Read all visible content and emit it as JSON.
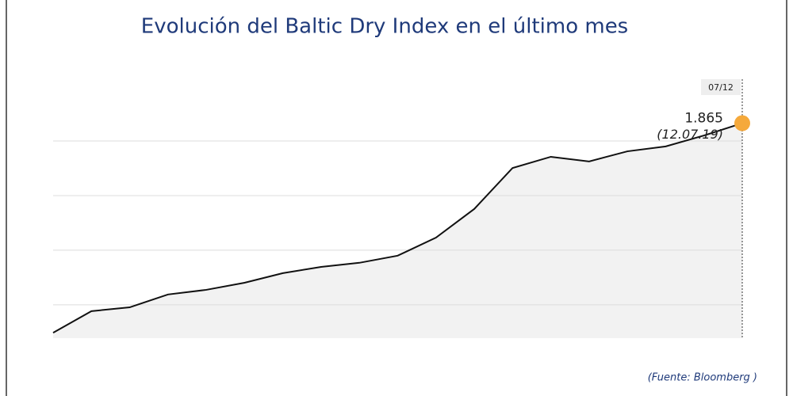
{
  "chart_data": {
    "type": "line",
    "title": "Evolución del Baltic Dry Index en el último mes",
    "categories": [
      null,
      null,
      null,
      null,
      null,
      null,
      null,
      null,
      null,
      null,
      null,
      null,
      null,
      null,
      null,
      null,
      null,
      null,
      "07/12"
    ],
    "series": [
      {
        "name": "Baltic Dry Index",
        "color": "#111111",
        "values": [
          1098,
          1177,
          1191,
          1238,
          1255,
          1281,
          1316,
          1339,
          1354,
          1380,
          1446,
          1551,
          1701,
          1742,
          1725,
          1762,
          1780,
          1820,
          1865
        ],
        "value_labels": [
          null,
          null,
          null,
          null,
          null,
          null,
          null,
          null,
          null,
          null,
          null,
          null,
          null,
          null,
          null,
          null,
          null,
          null,
          "1.865"
        ]
      }
    ],
    "annotation": "(12.07.19)",
    "marker_color": "#f5a93b",
    "ylim": [
      1078,
      2026
    ],
    "yticks": [
      1200,
      1400,
      1600,
      1800
    ],
    "grid": true,
    "source": "(Fuente: Bloomberg )"
  }
}
